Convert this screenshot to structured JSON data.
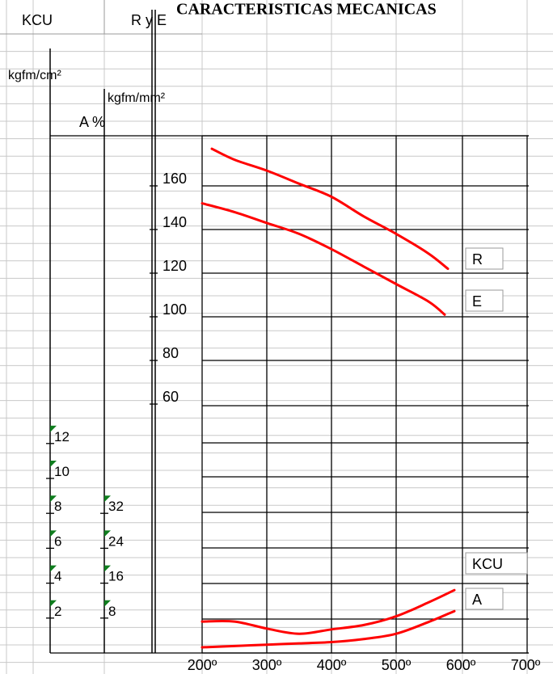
{
  "title_fragment": "CARACTERISTICAS MECANICAS",
  "headers": {
    "kcu_label": "KCU",
    "rye_label": "R y E",
    "kcu_unit": "kgfm/cm²",
    "rye_unit": "kgfm/mm²",
    "a_label": "A %"
  },
  "chart_data": {
    "type": "line",
    "title": "",
    "xlabel": "",
    "ylabel": "",
    "x_tick_labels": [
      "200º",
      "300º",
      "400º",
      "500º",
      "600º",
      "700º"
    ],
    "x_ticks": [
      200,
      300,
      400,
      500,
      600,
      700
    ],
    "xlim": [
      200,
      700
    ],
    "axes": {
      "rye": {
        "unit": "kgfm/mm²",
        "ticks": [
          60,
          80,
          100,
          120,
          140,
          160
        ],
        "tick_labels": [
          "60",
          "80",
          "100",
          "120",
          "140",
          "160"
        ]
      },
      "kcu": {
        "unit": "kgfm/cm²",
        "ticks": [
          2,
          4,
          6,
          8,
          10,
          12
        ],
        "tick_labels": [
          "2",
          "4",
          "6",
          "8",
          "10",
          "12"
        ]
      },
      "a": {
        "unit": "A %",
        "ticks": [
          8,
          16,
          24,
          32
        ],
        "tick_labels": [
          "8",
          "16",
          "24",
          "32"
        ]
      }
    },
    "grid": true,
    "series": [
      {
        "name": "R",
        "axis": "rye",
        "color": "#ff0000",
        "x": [
          215,
          250,
          300,
          350,
          400,
          450,
          500,
          550,
          580
        ],
        "y": [
          177,
          172,
          167,
          161,
          155,
          146,
          138,
          129,
          122
        ]
      },
      {
        "name": "E",
        "axis": "rye",
        "color": "#ff0000",
        "x": [
          200,
          250,
          300,
          350,
          400,
          450,
          500,
          550,
          575
        ],
        "y": [
          152,
          148,
          143,
          138,
          131,
          123,
          115,
          107,
          101
        ]
      },
      {
        "name": "KCU",
        "axis": "kcu",
        "color": "#ff0000",
        "x": [
          200,
          250,
          300,
          350,
          400,
          450,
          500,
          550,
          590
        ],
        "y": [
          1.8,
          1.8,
          1.4,
          1.1,
          1.35,
          1.6,
          2.1,
          2.9,
          3.6
        ]
      },
      {
        "name": "A",
        "axis": "a",
        "color": "#ff0000",
        "x": [
          200,
          250,
          300,
          350,
          400,
          450,
          500,
          550,
          590
        ],
        "y": [
          1.3,
          1.6,
          1.9,
          2.2,
          2.5,
          3.2,
          4.4,
          7.1,
          9.6
        ]
      }
    ],
    "legend_labels": [
      "R",
      "E",
      "KCU",
      "A"
    ]
  }
}
